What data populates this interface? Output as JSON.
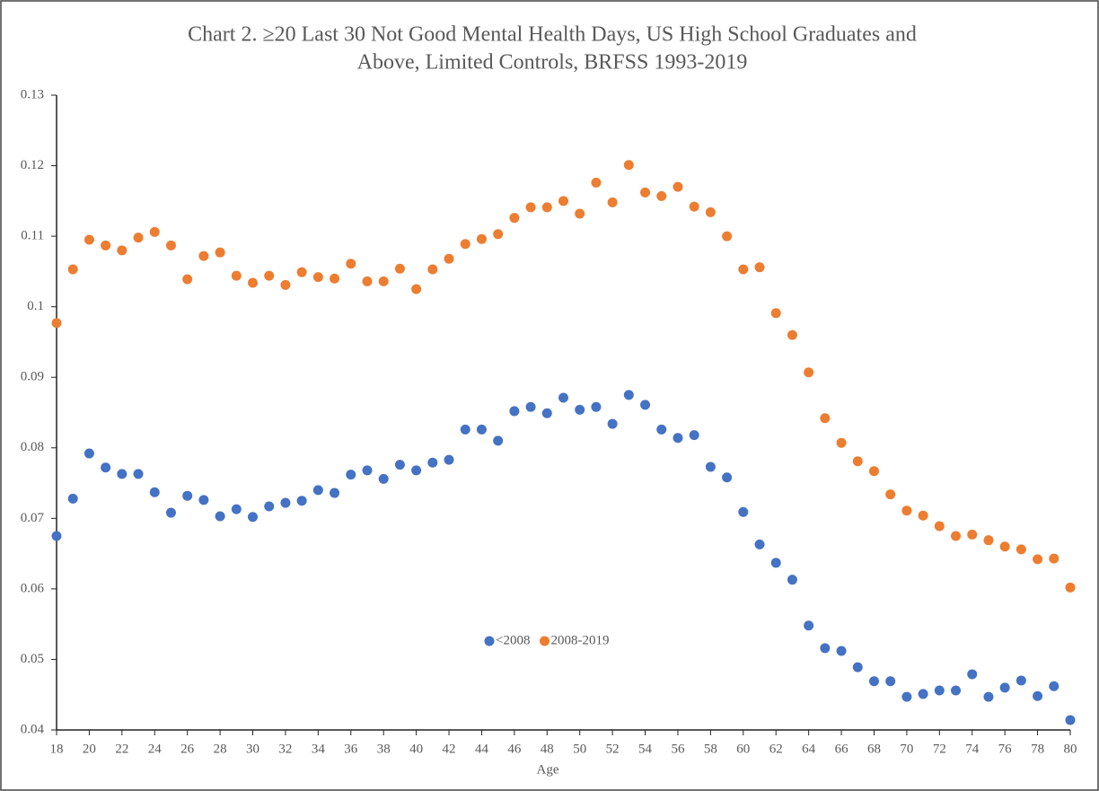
{
  "chart_data": {
    "type": "scatter",
    "title": [
      "Chart 2. ≥20 Last 30 Not Good Mental Health Days, US High School Graduates and",
      "Above, Limited Controls, BRFSS 1993-2019"
    ],
    "x_label": "Age",
    "x": [
      18,
      19,
      20,
      21,
      22,
      23,
      24,
      25,
      26,
      27,
      28,
      29,
      30,
      31,
      32,
      33,
      34,
      35,
      36,
      37,
      38,
      39,
      40,
      41,
      42,
      43,
      44,
      45,
      46,
      47,
      48,
      49,
      50,
      51,
      52,
      53,
      54,
      55,
      56,
      57,
      58,
      59,
      60,
      61,
      62,
      63,
      64,
      65,
      66,
      67,
      68,
      69,
      70,
      71,
      72,
      73,
      74,
      75,
      76,
      77,
      78,
      79,
      80
    ],
    "series": [
      {
        "name": "<2008",
        "color": "#4472c4",
        "values": [
          0.0675,
          0.0728,
          0.0792,
          0.0772,
          0.0763,
          0.0763,
          0.0737,
          0.0708,
          0.0732,
          0.0726,
          0.0703,
          0.0713,
          0.0702,
          0.0717,
          0.0722,
          0.0725,
          0.074,
          0.0736,
          0.0762,
          0.0768,
          0.0756,
          0.0776,
          0.0768,
          0.0779,
          0.0783,
          0.0826,
          0.0826,
          0.081,
          0.0852,
          0.0858,
          0.0849,
          0.0871,
          0.0854,
          0.0858,
          0.0834,
          0.0875,
          0.0861,
          0.0826,
          0.0814,
          0.0818,
          0.0773,
          0.0758,
          0.0709,
          0.0663,
          0.0637,
          0.0613,
          0.0548,
          0.0516,
          0.0512,
          0.0489,
          0.0469,
          0.0469,
          0.0447,
          0.0451,
          0.0456,
          0.0456,
          0.0479,
          0.0447,
          0.046,
          0.047,
          0.0448,
          0.0462,
          0.0414
        ]
      },
      {
        "name": "2008-2019",
        "color": "#ed7d31",
        "values": [
          0.0977,
          0.1053,
          0.1095,
          0.1087,
          0.108,
          0.1098,
          0.1106,
          0.1087,
          0.1039,
          0.1072,
          0.1077,
          0.1044,
          0.1034,
          0.1044,
          0.1031,
          0.1049,
          0.1042,
          0.104,
          0.1061,
          0.1036,
          0.1036,
          0.1054,
          0.1025,
          0.1053,
          0.1068,
          0.1089,
          0.1096,
          0.1103,
          0.1126,
          0.1141,
          0.1141,
          0.115,
          0.1132,
          0.1176,
          0.1148,
          0.1201,
          0.1162,
          0.1157,
          0.117,
          0.1142,
          0.1134,
          0.11,
          0.1053,
          0.1056,
          0.0991,
          0.096,
          0.0907,
          0.0842,
          0.0807,
          0.0781,
          0.0767,
          0.0734,
          0.0711,
          0.0704,
          0.0689,
          0.0675,
          0.0677,
          0.0669,
          0.066,
          0.0656,
          0.0642,
          0.0643,
          0.0602
        ]
      }
    ],
    "xlim": [
      18,
      80
    ],
    "xticks": [
      18,
      20,
      22,
      24,
      26,
      28,
      30,
      32,
      34,
      36,
      38,
      40,
      42,
      44,
      46,
      48,
      50,
      52,
      54,
      56,
      58,
      60,
      62,
      64,
      66,
      68,
      70,
      72,
      74,
      76,
      78,
      80
    ],
    "ylim": [
      0.04,
      0.13
    ],
    "yticks": [
      0.04,
      0.05,
      0.06,
      0.07,
      0.08,
      0.09,
      0.1,
      0.11,
      0.12,
      0.13
    ],
    "grid": false,
    "legend": "center"
  }
}
